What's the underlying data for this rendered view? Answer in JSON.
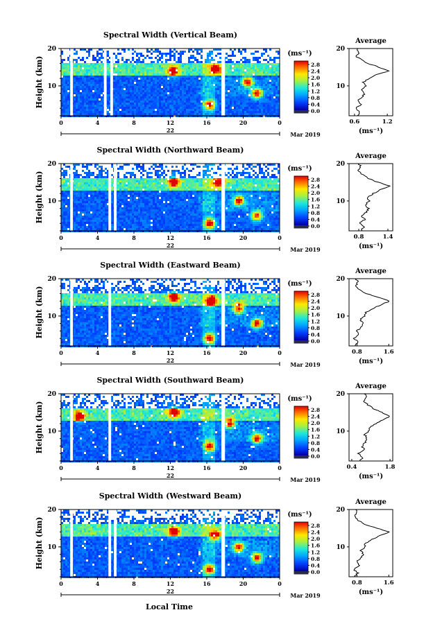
{
  "chart_data": [
    {
      "type": "heatmap",
      "title": "Spectral Width (Vertical Beam)",
      "ylabel": "Height (km)",
      "x_ticks": [
        "0",
        "4",
        "8",
        "12",
        "16",
        "20",
        "0"
      ],
      "y_ticks": [
        "10",
        "20"
      ],
      "xlim": [
        0,
        24
      ],
      "ylim": [
        2,
        20
      ],
      "date_day": "22",
      "date_month": "Mar 2019",
      "colorbar_unit": "(ms⁻¹)",
      "colorbar_ticks": [
        "0.0",
        "0.4",
        "0.8",
        "1.2",
        "1.6",
        "2.0",
        "2.4",
        "2.8"
      ],
      "data_gaps_hours": [
        [
          1.0,
          1.3
        ],
        [
          4.7,
          5.0
        ],
        [
          5.4,
          5.7
        ],
        [
          17.6,
          18.0
        ]
      ],
      "hot_spots": [
        {
          "hour": 12.3,
          "height_km": 14.0,
          "width": "high"
        },
        {
          "hour": 16.3,
          "height_km": 5.0,
          "width": "high"
        },
        {
          "hour": 17.0,
          "height_km": 14.5,
          "width": "high"
        },
        {
          "hour": 21.5,
          "height_km": 8.0,
          "width": "high"
        },
        {
          "hour": 20.5,
          "height_km": 11.0,
          "width": "high"
        }
      ],
      "average": {
        "title": "Average",
        "xlabel": "(ms⁻¹)",
        "x_ticks": [
          "0.6",
          "1.2"
        ],
        "xlim": [
          0.5,
          1.3
        ],
        "y_ticks": [
          "10",
          "20"
        ],
        "ylim": [
          2,
          20
        ],
        "profile": [
          [
            2,
            0.65
          ],
          [
            3,
            0.7
          ],
          [
            4,
            0.62
          ],
          [
            5,
            0.72
          ],
          [
            6,
            0.66
          ],
          [
            7,
            0.74
          ],
          [
            8,
            0.78
          ],
          [
            9,
            0.72
          ],
          [
            10,
            0.8
          ],
          [
            11,
            0.76
          ],
          [
            12,
            0.88
          ],
          [
            13,
            1.0
          ],
          [
            14,
            1.22
          ],
          [
            15,
            1.05
          ],
          [
            16,
            0.85
          ],
          [
            17,
            0.72
          ],
          [
            18,
            0.62
          ],
          [
            19,
            0.68
          ],
          [
            20,
            0.66
          ]
        ]
      }
    },
    {
      "type": "heatmap",
      "title": "Spectral Width (Northward Beam)",
      "ylabel": "Height (km)",
      "x_ticks": [
        "0",
        "4",
        "8",
        "12",
        "16",
        "20",
        "0"
      ],
      "y_ticks": [
        "10",
        "20"
      ],
      "xlim": [
        0,
        24
      ],
      "ylim": [
        2,
        20
      ],
      "date_day": "22",
      "date_month": "Mar 2019",
      "colorbar_unit": "(ms⁻¹)",
      "colorbar_ticks": [
        "0.0",
        "0.4",
        "0.8",
        "1.2",
        "1.6",
        "2.0",
        "2.4",
        "2.8"
      ],
      "data_gaps_hours": [
        [
          1.0,
          1.3
        ],
        [
          5.2,
          5.5
        ],
        [
          5.8,
          6.1
        ],
        [
          17.6,
          18.0
        ]
      ],
      "hot_spots": [
        {
          "hour": 12.4,
          "height_km": 15.0,
          "width": "high"
        },
        {
          "hour": 16.3,
          "height_km": 4.0,
          "width": "high"
        },
        {
          "hour": 17.3,
          "height_km": 15.0,
          "width": "high"
        },
        {
          "hour": 21.5,
          "height_km": 6.0,
          "width": "high"
        },
        {
          "hour": 19.5,
          "height_km": 10.0,
          "width": "high"
        }
      ],
      "average": {
        "title": "Average",
        "xlabel": "(ms⁻¹)",
        "x_ticks": [
          "0.8",
          "1.4"
        ],
        "xlim": [
          0.6,
          1.5
        ],
        "y_ticks": [
          "10",
          "20"
        ],
        "ylim": [
          2,
          20
        ],
        "profile": [
          [
            2,
            0.85
          ],
          [
            3,
            0.9
          ],
          [
            4,
            0.82
          ],
          [
            5,
            0.92
          ],
          [
            6,
            0.86
          ],
          [
            7,
            0.95
          ],
          [
            8,
            1.0
          ],
          [
            9,
            0.93
          ],
          [
            10,
            1.02
          ],
          [
            11,
            0.98
          ],
          [
            12,
            1.1
          ],
          [
            13,
            1.25
          ],
          [
            14,
            1.42
          ],
          [
            15,
            1.2
          ],
          [
            16,
            1.0
          ],
          [
            17,
            0.88
          ],
          [
            18,
            0.78
          ],
          [
            19,
            0.85
          ],
          [
            20,
            0.8
          ]
        ]
      }
    },
    {
      "type": "heatmap",
      "title": "Spectral Width (Eastward Beam)",
      "ylabel": "Height (km)",
      "x_ticks": [
        "0",
        "4",
        "8",
        "12",
        "16",
        "20",
        "0"
      ],
      "y_ticks": [
        "10",
        "20"
      ],
      "xlim": [
        0,
        24
      ],
      "ylim": [
        2,
        20
      ],
      "date_day": "22",
      "date_month": "Mar 2019",
      "colorbar_unit": "(ms⁻¹)",
      "colorbar_ticks": [
        "0.0",
        "0.4",
        "0.8",
        "1.2",
        "1.6",
        "2.0",
        "2.4",
        "2.8"
      ],
      "data_gaps_hours": [
        [
          1.0,
          1.3
        ],
        [
          5.2,
          5.5
        ],
        [
          17.6,
          18.0
        ]
      ],
      "hot_spots": [
        {
          "hour": 12.4,
          "height_km": 15.0,
          "width": "high"
        },
        {
          "hour": 16.3,
          "height_km": 4.0,
          "width": "high"
        },
        {
          "hour": 16.5,
          "height_km": 14.0,
          "width": "high"
        },
        {
          "hour": 21.5,
          "height_km": 8.0,
          "width": "high"
        },
        {
          "hour": 19.5,
          "height_km": 12.0,
          "width": "high"
        }
      ],
      "average": {
        "title": "Average",
        "xlabel": "(ms⁻¹)",
        "x_ticks": [
          "0.8",
          "1.6"
        ],
        "xlim": [
          0.6,
          1.7
        ],
        "y_ticks": [
          "10",
          "20"
        ],
        "ylim": [
          2,
          20
        ],
        "profile": [
          [
            2,
            0.75
          ],
          [
            3,
            0.82
          ],
          [
            4,
            0.72
          ],
          [
            5,
            0.85
          ],
          [
            6,
            0.8
          ],
          [
            7,
            0.9
          ],
          [
            8,
            0.95
          ],
          [
            9,
            0.88
          ],
          [
            10,
            1.0
          ],
          [
            11,
            1.02
          ],
          [
            12,
            1.2
          ],
          [
            13,
            1.4
          ],
          [
            14,
            1.62
          ],
          [
            15,
            1.35
          ],
          [
            16,
            1.05
          ],
          [
            17,
            0.85
          ],
          [
            18,
            0.75
          ],
          [
            19,
            0.82
          ],
          [
            20,
            0.78
          ]
        ]
      }
    },
    {
      "type": "heatmap",
      "title": "Spectral Width (Southward Beam)",
      "ylabel": "Height (km)",
      "x_ticks": [
        "0",
        "4",
        "8",
        "12",
        "16",
        "20",
        "0"
      ],
      "y_ticks": [
        "10",
        "20"
      ],
      "xlim": [
        0,
        24
      ],
      "ylim": [
        2,
        20
      ],
      "date_day": "22",
      "date_month": "Mar 2019",
      "colorbar_unit": "(ms⁻¹)",
      "colorbar_ticks": [
        "0.0",
        "0.4",
        "0.8",
        "1.2",
        "1.6",
        "2.0",
        "2.4",
        "2.8"
      ],
      "data_gaps_hours": [
        [
          1.0,
          1.3
        ],
        [
          5.2,
          5.5
        ],
        [
          17.6,
          18.0
        ]
      ],
      "hot_spots": [
        {
          "hour": 2.0,
          "height_km": 14.0,
          "width": "high"
        },
        {
          "hour": 12.4,
          "height_km": 15.0,
          "width": "high"
        },
        {
          "hour": 16.3,
          "height_km": 6.0,
          "width": "high"
        },
        {
          "hour": 21.5,
          "height_km": 8.0,
          "width": "high"
        },
        {
          "hour": 18.5,
          "height_km": 12.0,
          "width": "high"
        }
      ],
      "average": {
        "title": "Average",
        "xlabel": "(ms⁻¹)",
        "x_ticks": [
          "0.4",
          "1.8"
        ],
        "xlim": [
          0.3,
          1.9
        ],
        "y_ticks": [
          "10",
          "20"
        ],
        "ylim": [
          2,
          20
        ],
        "profile": [
          [
            2,
            0.7
          ],
          [
            3,
            0.8
          ],
          [
            4,
            0.65
          ],
          [
            5,
            0.85
          ],
          [
            6,
            0.78
          ],
          [
            7,
            0.9
          ],
          [
            8,
            0.95
          ],
          [
            9,
            0.88
          ],
          [
            10,
            1.0
          ],
          [
            11,
            1.05
          ],
          [
            12,
            1.3
          ],
          [
            13,
            1.55
          ],
          [
            14,
            1.78
          ],
          [
            15,
            1.5
          ],
          [
            16,
            1.2
          ],
          [
            17,
            1.0
          ],
          [
            18,
            0.8
          ],
          [
            19,
            0.95
          ],
          [
            20,
            0.85
          ]
        ]
      }
    },
    {
      "type": "heatmap",
      "title": "Spectral Width (Westward Beam)",
      "ylabel": "Height (km)",
      "xlabel": "Local Time",
      "x_ticks": [
        "0",
        "4",
        "8",
        "12",
        "16",
        "20",
        "0"
      ],
      "y_ticks": [
        "10",
        "20"
      ],
      "xlim": [
        0,
        24
      ],
      "ylim": [
        2,
        20
      ],
      "date_day": "22",
      "date_month": "Mar 2019",
      "colorbar_unit": "(ms⁻¹)",
      "colorbar_ticks": [
        "0.0",
        "0.4",
        "0.8",
        "1.2",
        "1.6",
        "2.0",
        "2.4",
        "2.8"
      ],
      "data_gaps_hours": [
        [
          1.0,
          1.3
        ],
        [
          5.2,
          5.5
        ],
        [
          5.8,
          6.1
        ],
        [
          17.6,
          18.0
        ]
      ],
      "hot_spots": [
        {
          "hour": 12.4,
          "height_km": 14.0,
          "width": "high"
        },
        {
          "hour": 16.3,
          "height_km": 4.0,
          "width": "high"
        },
        {
          "hour": 17.0,
          "height_km": 13.0,
          "width": "high"
        },
        {
          "hour": 21.5,
          "height_km": 7.0,
          "width": "high"
        },
        {
          "hour": 19.5,
          "height_km": 10.0,
          "width": "high"
        }
      ],
      "average": {
        "title": "Average",
        "xlabel": "(ms⁻¹)",
        "x_ticks": [
          "0.8",
          "1.6"
        ],
        "xlim": [
          0.6,
          1.7
        ],
        "y_ticks": [
          "10",
          "20"
        ],
        "ylim": [
          2,
          20
        ],
        "profile": [
          [
            2,
            0.75
          ],
          [
            3,
            0.82
          ],
          [
            4,
            0.72
          ],
          [
            5,
            0.85
          ],
          [
            6,
            0.8
          ],
          [
            7,
            0.9
          ],
          [
            8,
            0.95
          ],
          [
            9,
            0.9
          ],
          [
            10,
            1.0
          ],
          [
            11,
            1.02
          ],
          [
            12,
            1.18
          ],
          [
            13,
            1.38
          ],
          [
            14,
            1.6
          ],
          [
            15,
            1.3
          ],
          [
            16,
            1.02
          ],
          [
            17,
            0.85
          ],
          [
            18,
            0.74
          ],
          [
            19,
            0.8
          ],
          [
            20,
            0.76
          ]
        ]
      }
    }
  ]
}
